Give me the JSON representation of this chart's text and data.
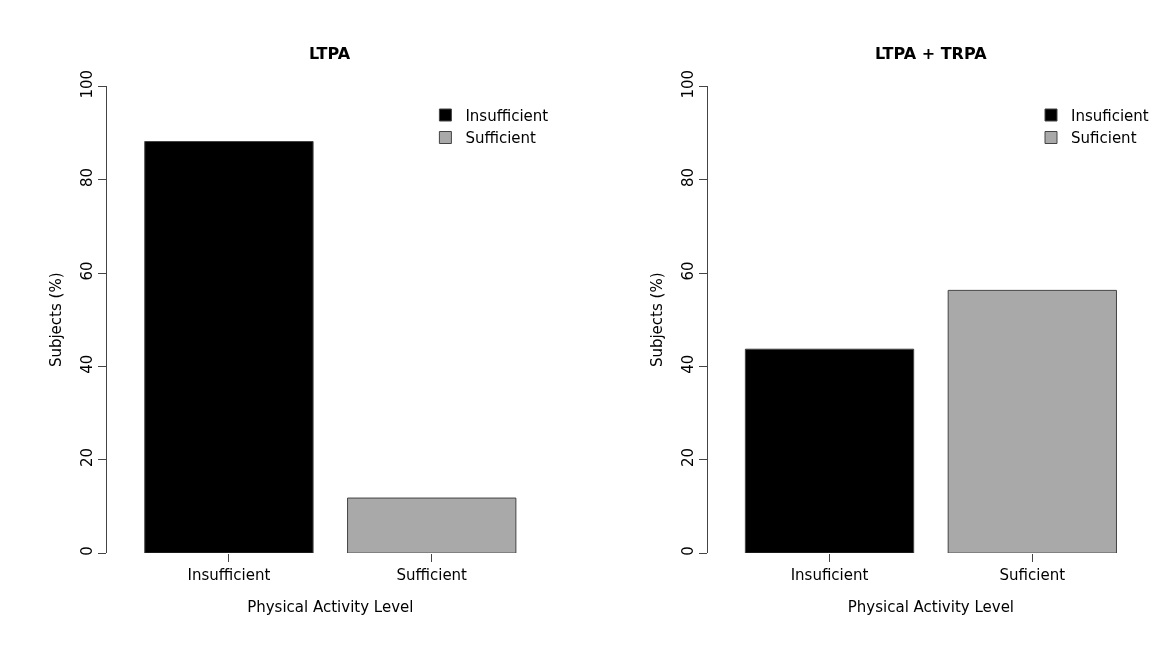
{
  "chart_data": [
    {
      "type": "bar",
      "title": "LTPA",
      "xlabel": "Physical Activity Level",
      "ylabel": "Subjects (%)",
      "categories": [
        "Insufficient",
        "Sufficient"
      ],
      "series": [
        {
          "name": "Insufficient",
          "color": "#000000",
          "values": [
            88.2,
            null
          ]
        },
        {
          "name": "Sufficient",
          "color": "#a9a9a9",
          "values": [
            null,
            11.8
          ]
        }
      ],
      "ylim": [
        0,
        100
      ],
      "yticks": [
        0,
        20,
        40,
        60,
        80,
        100
      ],
      "legend": "top right"
    },
    {
      "type": "bar",
      "title": "LTPA + TRPA",
      "xlabel": "Physical Activity Level",
      "ylabel": "Subjects (%)",
      "categories": [
        "Insuficient",
        "Suficient"
      ],
      "series": [
        {
          "name": "Insuficient",
          "color": "#000000",
          "values": [
            43.7,
            null
          ]
        },
        {
          "name": "Suficient",
          "color": "#a9a9a9",
          "values": [
            null,
            56.3
          ]
        }
      ],
      "ylim": [
        0,
        100
      ],
      "yticks": [
        0,
        20,
        40,
        60,
        80,
        100
      ],
      "legend": "top right"
    }
  ]
}
